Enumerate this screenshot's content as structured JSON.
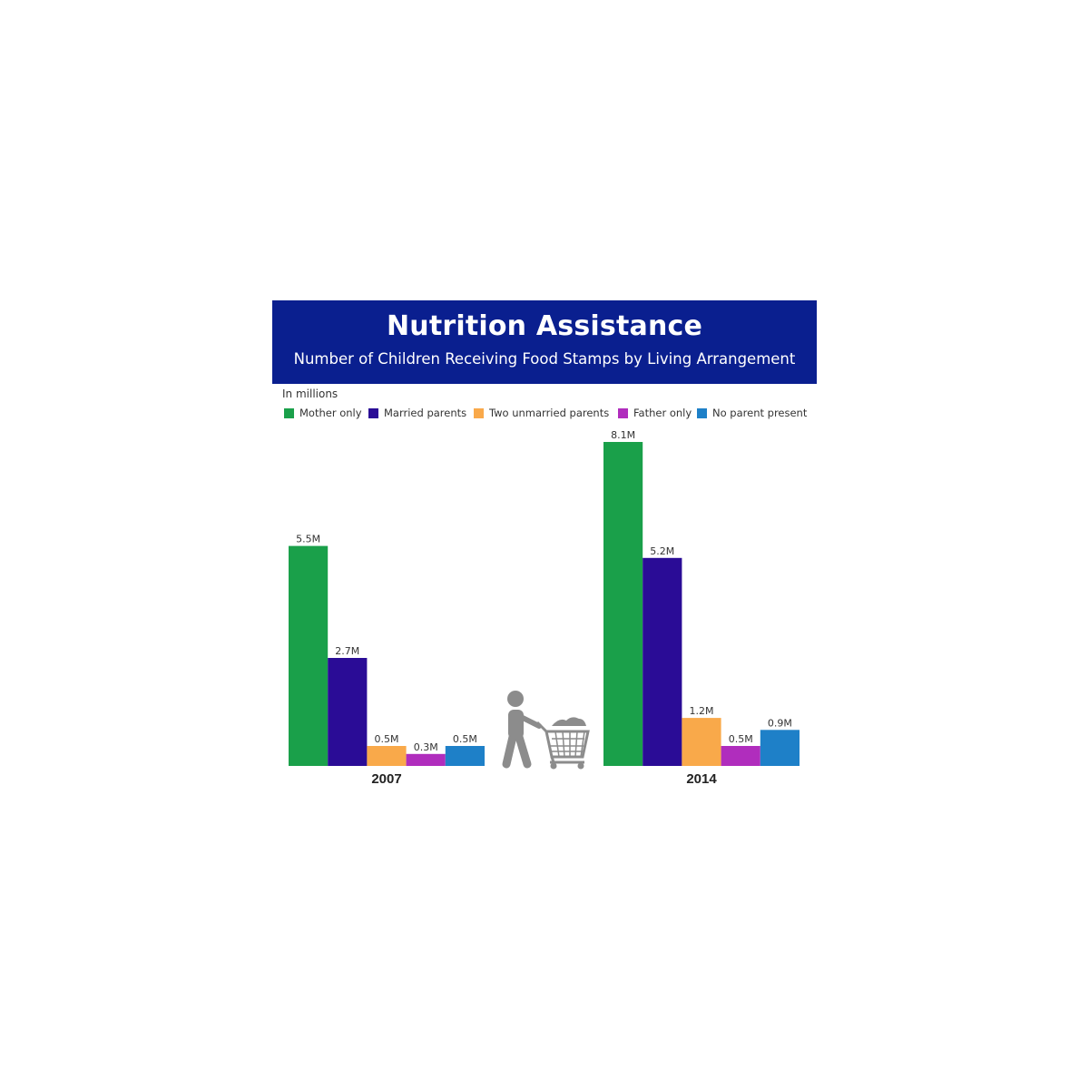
{
  "chart_data": {
    "type": "bar",
    "title": "Nutrition Assistance",
    "subtitle": "Number of Children Receiving Food Stamps by Living Arrangement",
    "units_note": "In millions",
    "categories": [
      "2007",
      "2014"
    ],
    "series": [
      {
        "name": "Mother only",
        "color": "#1aa04a",
        "values": [
          5.5,
          8.1
        ],
        "labels": [
          "5.5M",
          "8.1M"
        ]
      },
      {
        "name": "Married parents",
        "color": "#2a0c96",
        "values": [
          2.7,
          5.2
        ],
        "labels": [
          "2.7M",
          "5.2M"
        ]
      },
      {
        "name": "Two unmarried parents",
        "color": "#f9a94a",
        "values": [
          0.5,
          1.2
        ],
        "labels": [
          "0.5M",
          "1.2M"
        ]
      },
      {
        "name": "Father only",
        "color": "#b02dbd",
        "values": [
          0.3,
          0.5
        ],
        "labels": [
          "0.3M",
          "0.5M"
        ]
      },
      {
        "name": "No parent present",
        "color": "#1e80c8",
        "values": [
          0.5,
          0.9
        ],
        "labels": [
          "0.5M",
          "0.9M"
        ]
      }
    ],
    "ylim": [
      0,
      8.1
    ],
    "legend": "top",
    "grid": false
  },
  "icons": {
    "decoration": "shopper-with-cart-icon"
  }
}
